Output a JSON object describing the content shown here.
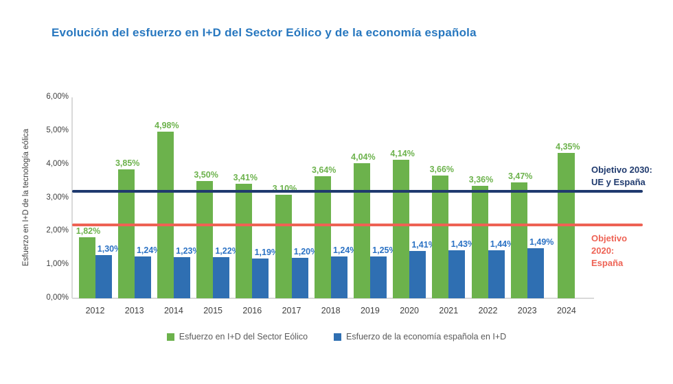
{
  "title": {
    "text": "Evolución del esfuerzo en I+D del Sector Eólico y de la economía española",
    "color": "#2777BF"
  },
  "chart_data": {
    "type": "bar",
    "title": "Evolución del esfuerzo en I+D del Sector Eólico y de la economía española",
    "ylabel": "Esfuerzo en I+D de la tecnología eólica",
    "ylim": [
      0,
      6
    ],
    "ytick_values": [
      0,
      1,
      2,
      3,
      4,
      5,
      6
    ],
    "ytick_labels": [
      "0,00%",
      "1,00%",
      "2,00%",
      "3,00%",
      "4,00%",
      "5,00%",
      "6,00%"
    ],
    "grid": false,
    "legend_position": "bottom",
    "categories": [
      "2012",
      "2013",
      "2014",
      "2015",
      "2016",
      "2017",
      "2018",
      "2019",
      "2020",
      "2021",
      "2022",
      "2023",
      "2024"
    ],
    "series": [
      {
        "name": "Esfuerzo en I+D del Sector Eólico",
        "color": "#6CB24C",
        "label_color": "#6CB24C",
        "values": [
          1.82,
          3.85,
          4.98,
          3.5,
          3.41,
          3.1,
          3.64,
          4.04,
          4.14,
          3.66,
          3.36,
          3.47,
          4.35
        ],
        "labels": [
          "1,82%",
          "3,85%",
          "4,98%",
          "3,50%",
          "3,41%",
          "3,10%",
          "3,64%",
          "4,04%",
          "4,14%",
          "3,66%",
          "3,36%",
          "3,47%",
          "4,35%"
        ]
      },
      {
        "name": "Esfuerzo de la economía española en I+D",
        "color": "#2F6FB2",
        "label_color": "#2B72C4",
        "values": [
          1.3,
          1.24,
          1.23,
          1.22,
          1.19,
          1.2,
          1.24,
          1.25,
          1.41,
          1.43,
          1.44,
          1.49,
          null
        ],
        "labels": [
          "1,30%",
          "1,24%",
          "1,23%",
          "1,22%",
          "1,19%",
          "1,20%",
          "1,24%",
          "1,25%",
          "1,41%",
          "1,43%",
          "1,44%",
          "1,49%",
          null
        ]
      }
    ],
    "reference_lines": [
      {
        "id": "objetivo-2030",
        "value": 3.2,
        "color": "#1F3A6E",
        "label_lines": [
          "Objetivo 2030:",
          "UE y España"
        ],
        "label_position": "above-right"
      },
      {
        "id": "objetivo-2020",
        "value": 2.2,
        "color": "#EE6254",
        "label_lines": [
          "Objetivo",
          "2020:",
          "España"
        ],
        "label_position": "below-right"
      }
    ]
  },
  "colors": {
    "axis_text": "#3F3F3F",
    "axis_line": "#D9D9D9",
    "legend_text": "#595959",
    "background": "#FFFFFF"
  }
}
